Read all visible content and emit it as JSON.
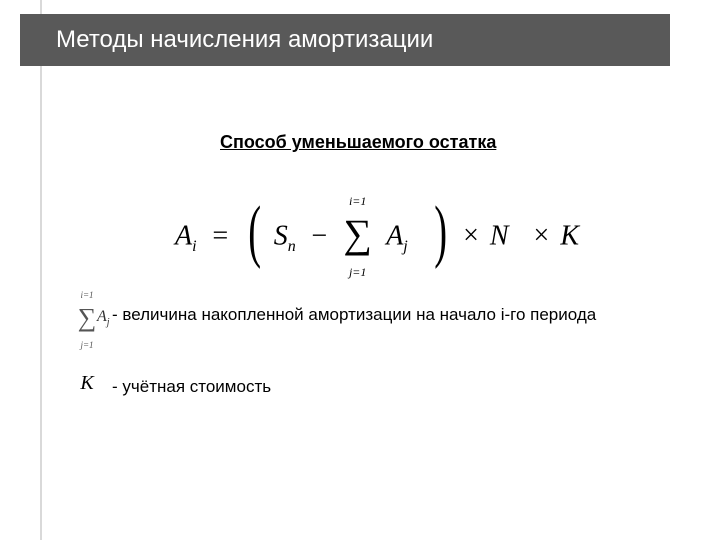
{
  "colors": {
    "title_bar_bg": "#595959",
    "title_text": "#ffffff",
    "left_rule": "#d9d9d9",
    "page_bg": "#ffffff",
    "text": "#000000"
  },
  "typography": {
    "title_fontsize": 24,
    "subheading_fontsize": 18,
    "body_fontsize": 17,
    "formula_fontsize": 28,
    "formula_family": "Times New Roman"
  },
  "title": "Методы начисления амортизации",
  "subheading": "Способ уменьшаемого остатка",
  "formula": {
    "lhs_var": "A",
    "lhs_sub": "i",
    "eq": "=",
    "term1_var": "S",
    "term1_sub": "n",
    "minus": "−",
    "sum_upper": "i=1",
    "sum_lower": "j=1",
    "sum_var": "A",
    "sum_sub": "j",
    "times": "×",
    "factor1": "N",
    "factor2": "K"
  },
  "legend": {
    "item1": {
      "sum_upper": "i=1",
      "sum_lower": "j=1",
      "sum_var": "A",
      "sum_sub": "j",
      "text": "- величина накопленной амортизации на начало i-го периода"
    },
    "item2": {
      "symbol": "K",
      "text": "- учётная стоимость"
    }
  }
}
